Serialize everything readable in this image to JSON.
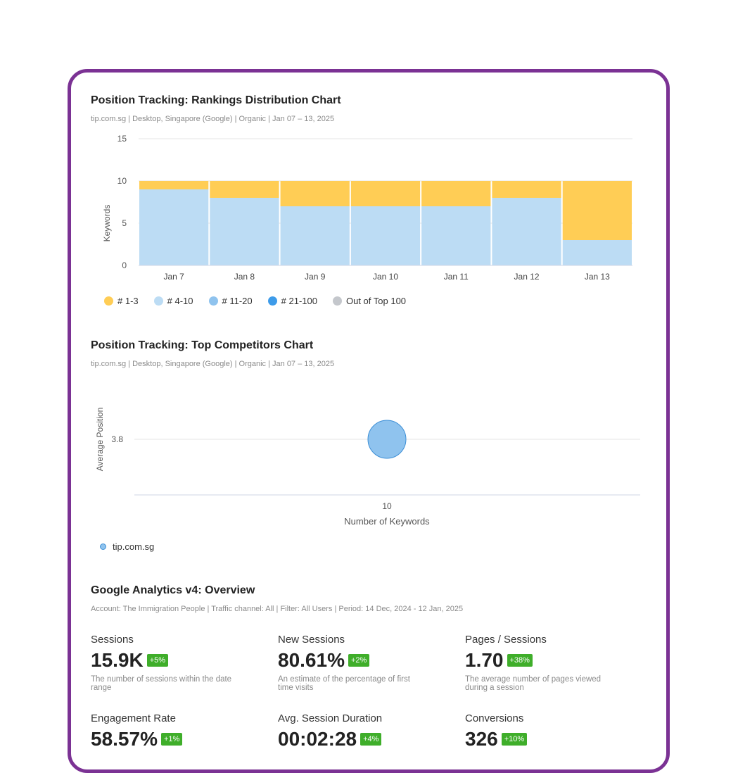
{
  "rankings": {
    "title": "Position Tracking: Rankings Distribution Chart",
    "subtitle": "tip.com.sg | Desktop, Singapore (Google) | Organic | Jan 07 – 13, 2025",
    "chart_data": {
      "type": "bar",
      "stacked": true,
      "categories": [
        "Jan 7",
        "Jan 8",
        "Jan 9",
        "Jan 10",
        "Jan 11",
        "Jan 12",
        "Jan 13"
      ],
      "series": [
        {
          "name": "# 4-10",
          "color": "#bcdcf4",
          "values": [
            9,
            8,
            7,
            7,
            7,
            8,
            3
          ]
        },
        {
          "name": "# 1-3",
          "color": "#ffcd55",
          "values": [
            1,
            2,
            3,
            3,
            3,
            2,
            7
          ]
        }
      ],
      "legend": [
        {
          "name": "# 1-3",
          "color": "#ffcd55"
        },
        {
          "name": "# 4-10",
          "color": "#bcdcf4"
        },
        {
          "name": "# 11-20",
          "color": "#8fc3ee"
        },
        {
          "name": "# 21-100",
          "color": "#3d9be9"
        },
        {
          "name": "Out of Top 100",
          "color": "#c4c7cc"
        }
      ],
      "ylabel": "Keywords",
      "ylim": [
        0,
        15
      ],
      "yticks": [
        0,
        5,
        10,
        15
      ],
      "grid": true,
      "legend_position": "bottom-left"
    }
  },
  "competitors": {
    "title": "Position Tracking: Top Competitors Chart",
    "subtitle": "tip.com.sg | Desktop, Singapore (Google) | Organic | Jan 07 – 13, 2025",
    "chart_data": {
      "type": "scatter",
      "series": [
        {
          "name": "tip.com.sg",
          "color": "#8fc3ee",
          "points": [
            {
              "x": 10,
              "y": 3.8
            }
          ]
        }
      ],
      "xlabel": "Number of Keywords",
      "ylabel": "Average Position",
      "xticks": [
        10
      ],
      "yticks": [
        3.8
      ],
      "legend_position": "bottom-left"
    }
  },
  "ga": {
    "title": "Google Analytics v4: Overview",
    "subtitle": "Account: The Immigration People | Traffic channel: All | Filter: All Users | Period: 14 Dec, 2024 - 12 Jan, 2025",
    "metrics": [
      {
        "label": "Sessions",
        "value": "15.9K",
        "change": "+5%",
        "desc": "The number of sessions within the date range"
      },
      {
        "label": "New Sessions",
        "value": "80.61%",
        "change": "+2%",
        "desc": "An estimate of the percentage of first time visits"
      },
      {
        "label": "Pages / Sessions",
        "value": "1.70",
        "change": "+38%",
        "desc": "The average number of pages viewed during a session"
      },
      {
        "label": "Engagement Rate",
        "value": "58.57%",
        "change": "+1%",
        "desc": ""
      },
      {
        "label": "Avg. Session Duration",
        "value": "00:02:28",
        "change": "+4%",
        "desc": ""
      },
      {
        "label": "Conversions",
        "value": "326",
        "change": "+10%",
        "desc": ""
      }
    ]
  }
}
